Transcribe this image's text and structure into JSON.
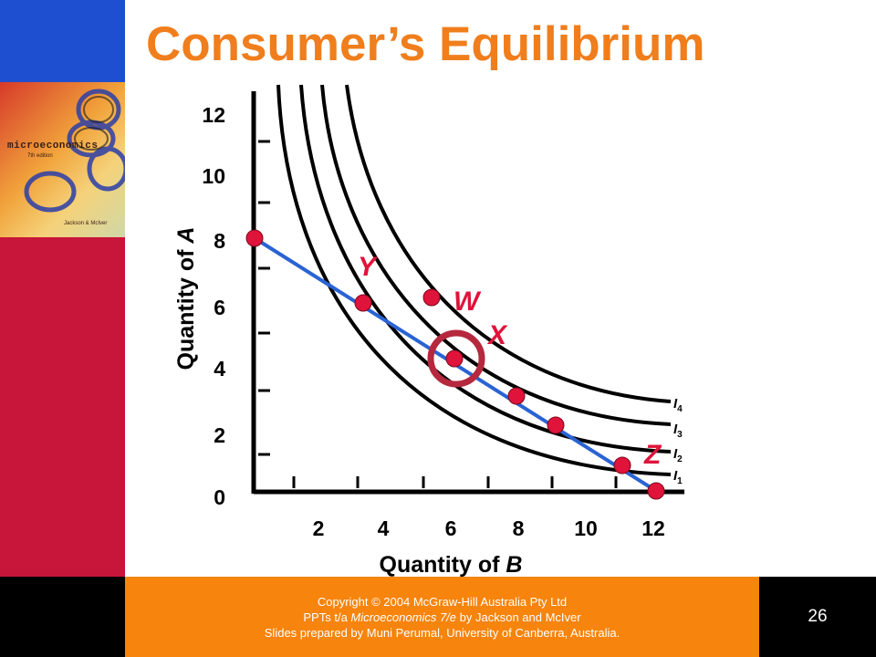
{
  "slide": {
    "title": "Consumer’s Equilibrium",
    "page_number": "26"
  },
  "book_cover": {
    "title": "microeconomics",
    "edition": "7th edition",
    "authors": "Jackson & McIver"
  },
  "diagram": {
    "x_axis_label_prefix": "Quantity of ",
    "x_axis_label_var": "B",
    "y_axis_label_prefix": "Quantity of ",
    "y_axis_label_var": "A",
    "x_ticks": [
      "2",
      "4",
      "6",
      "8",
      "10",
      "12"
    ],
    "y_ticks": [
      "0",
      "2",
      "4",
      "6",
      "8",
      "10",
      "12"
    ],
    "point_labels": {
      "Y": "Y",
      "W": "W",
      "X": "X",
      "Z": "Z"
    },
    "curve_labels": [
      "I",
      "I",
      "I",
      "I"
    ],
    "curve_subscripts": [
      "4",
      "3",
      "2",
      "1"
    ],
    "colors": {
      "budget_line": "#2a63d3",
      "points": "#e0133a",
      "highlight_ring": "#b5283e",
      "curves": "#000000"
    }
  },
  "footer": {
    "line1": "Copyright © 2004 McGraw-Hill Australia Pty Ltd",
    "line2_prefix": "PPTs t/a ",
    "line2_title": "Microeconomics 7/e",
    "line2_suffix": " by Jackson and McIver",
    "line3": "Slides prepared by Muni Perumal, University of Canberra, Australia."
  }
}
